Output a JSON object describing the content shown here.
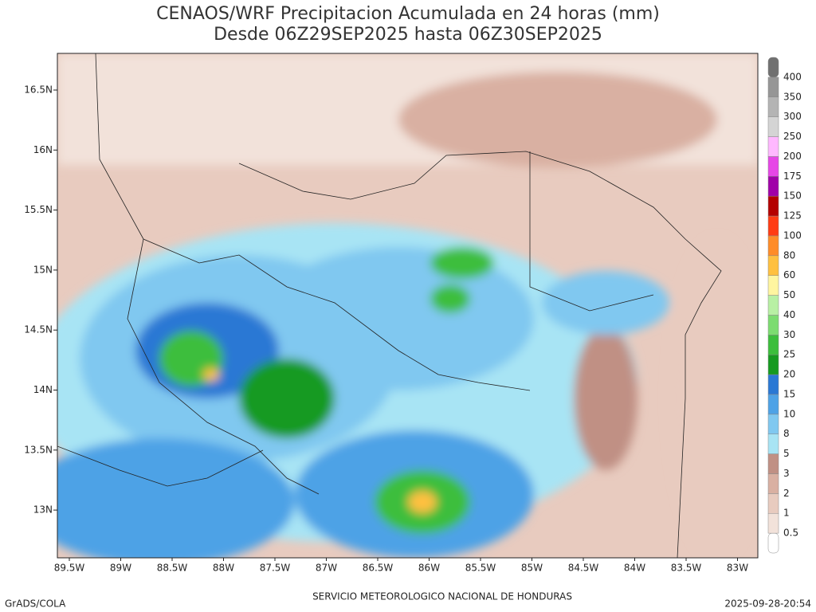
{
  "header": {
    "title": "CENAOS/WRF Precipitacion Acumulada en 24 horas (mm)",
    "subtitle": "Desde 06Z29SEP2025 hasta 06Z30SEP2025"
  },
  "axes": {
    "lat_labels": [
      "16.5N",
      "16N",
      "15.5N",
      "15N",
      "14.5N",
      "14N",
      "13.5N",
      "13N"
    ],
    "lon_labels": [
      "89.5W",
      "89W",
      "88.5W",
      "88W",
      "87.5W",
      "87W",
      "86.5W",
      "86W",
      "85.5W",
      "85W",
      "84.5W",
      "84W",
      "83.5W",
      "83W"
    ]
  },
  "colorbar": {
    "levels": [
      0.5,
      1,
      2,
      3,
      5,
      8,
      10,
      15,
      20,
      25,
      30,
      40,
      50,
      60,
      80,
      100,
      125,
      150,
      175,
      200,
      250,
      300,
      350,
      400
    ],
    "colors": [
      "#ffffff",
      "#f2e2da",
      "#e8cbbf",
      "#d9b0a2",
      "#c09084",
      "#a8e4f4",
      "#80c8f0",
      "#4ea2e6",
      "#2a78d4",
      "#169a20",
      "#3cbe3c",
      "#7cdc70",
      "#b8f0a4",
      "#fff5a0",
      "#ffc040",
      "#ff8c28",
      "#ff3c14",
      "#b40000",
      "#a000a8",
      "#e646e6",
      "#ffb8ff",
      "#d4d4d4",
      "#b4b4b4",
      "#969696",
      "#707070"
    ]
  },
  "footer": {
    "left": "GrADS/COLA",
    "center": "SERVICIO METEOROLOGICO NACIONAL DE HONDURAS",
    "right": "2025-09-28-20:54"
  }
}
